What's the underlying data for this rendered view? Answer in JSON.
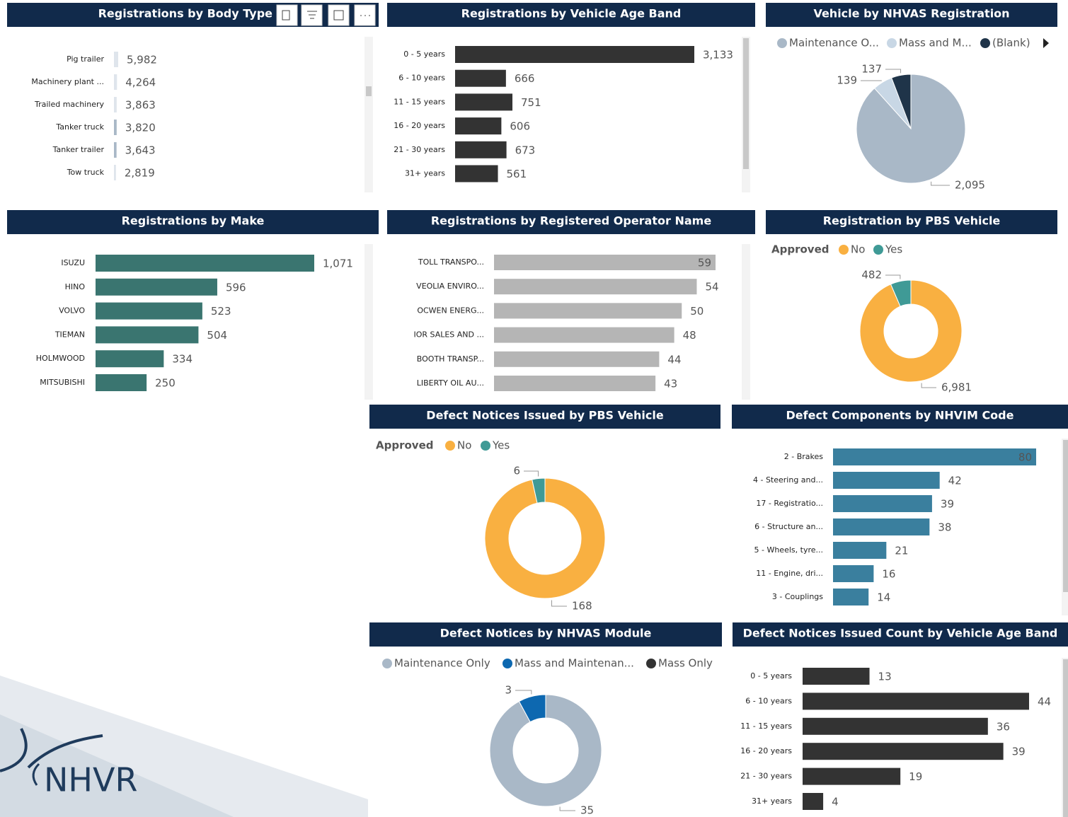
{
  "chart_data": [
    {
      "type": "bar",
      "title": "Registrations by Body Type",
      "categories": [
        "Pig trailer",
        "Machinery plant ...",
        "Trailed machinery",
        "Tanker truck",
        "Tanker trailer",
        "Tow truck"
      ],
      "values": [
        5982,
        4264,
        3863,
        3820,
        3643,
        2819
      ],
      "value_labels": [
        "5,982",
        "4,264",
        "3,863",
        "3,820",
        "3,643",
        "2,819"
      ],
      "colors": [
        "#dfe5ec",
        "#dfe5ec",
        "#dfe5ec",
        "#a9b8c7",
        "#a9b8c7",
        "#dfe5ec"
      ]
    },
    {
      "type": "bar",
      "title": "Registrations by Vehicle Age Band",
      "categories": [
        "0 - 5 years",
        "6 - 10 years",
        "11 - 15 years",
        "16 - 20 years",
        "21 - 30 years",
        "31+ years"
      ],
      "values": [
        3133,
        666,
        751,
        606,
        673,
        561
      ],
      "value_labels": [
        "3,133",
        "666",
        "751",
        "606",
        "673",
        "561"
      ],
      "color": "#333333"
    },
    {
      "type": "pie",
      "title": "Vehicle by NHVAS Registration",
      "categories": [
        "Maintenance O...",
        "Mass and M...",
        "(Blank)"
      ],
      "values": [
        2095,
        139,
        137
      ],
      "value_labels": [
        "2,095",
        "139",
        "137"
      ],
      "colors": [
        "#a9b8c7",
        "#c8d7e5",
        "#1f3449"
      ]
    },
    {
      "type": "bar",
      "title": "Registrations by Make",
      "categories": [
        "ISUZU",
        "HINO",
        "VOLVO",
        "TIEMAN",
        "HOLMWOOD",
        "MITSUBISHI"
      ],
      "values": [
        1071,
        596,
        523,
        504,
        334,
        250
      ],
      "value_labels": [
        "1,071",
        "596",
        "523",
        "504",
        "334",
        "250"
      ],
      "color": "#3a7570"
    },
    {
      "type": "bar",
      "title": "Registrations by Registered Operator Name",
      "categories": [
        "TOLL TRANSPO...",
        "VEOLIA ENVIRO...",
        "OCWEN ENERG...",
        "IOR SALES AND ...",
        "BOOTH TRANSP...",
        "LIBERTY OIL AU..."
      ],
      "values": [
        59,
        54,
        50,
        48,
        44,
        43
      ],
      "color": "#b5b5b5"
    },
    {
      "type": "donut",
      "title": "Registration by PBS Vehicle",
      "legend_title": "Approved",
      "categories": [
        "No",
        "Yes"
      ],
      "values": [
        6981,
        482
      ],
      "value_labels": [
        "6,981",
        "482"
      ],
      "colors": [
        "#f9b041",
        "#3f9a96"
      ]
    },
    {
      "type": "donut",
      "title": "Defect Notices Issued by PBS Vehicle",
      "legend_title": "Approved",
      "categories": [
        "No",
        "Yes"
      ],
      "values": [
        168,
        6
      ],
      "colors": [
        "#f9b041",
        "#3f9a96"
      ]
    },
    {
      "type": "bar",
      "title": "Defect Components by NHVIM Code",
      "categories": [
        "2 - Brakes",
        "4 - Steering and...",
        "17 - Registratio...",
        "6 - Structure an...",
        "5 - Wheels, tyre...",
        "11 - Engine, dri...",
        "3 - Couplings"
      ],
      "values": [
        80,
        42,
        39,
        38,
        21,
        16,
        14
      ],
      "color": "#3a7f9e"
    },
    {
      "type": "donut",
      "title": "Defect Notices by NHVAS Module",
      "categories": [
        "Maintenance Only",
        "Mass and Maintenan...",
        "Mass Only"
      ],
      "values": [
        35,
        3,
        null
      ],
      "colors": [
        "#a9b8c7",
        "#0d68b0",
        "#333333"
      ]
    },
    {
      "type": "bar",
      "title": "Defect Notices Issued Count by Vehicle Age Band",
      "categories": [
        "0 - 5 years",
        "6 - 10 years",
        "11 - 15 years",
        "16 - 20 years",
        "21 - 30 years",
        "31+ years"
      ],
      "values": [
        13,
        44,
        36,
        39,
        19,
        4
      ],
      "color": "#333333"
    }
  ],
  "logo": "NHVR"
}
